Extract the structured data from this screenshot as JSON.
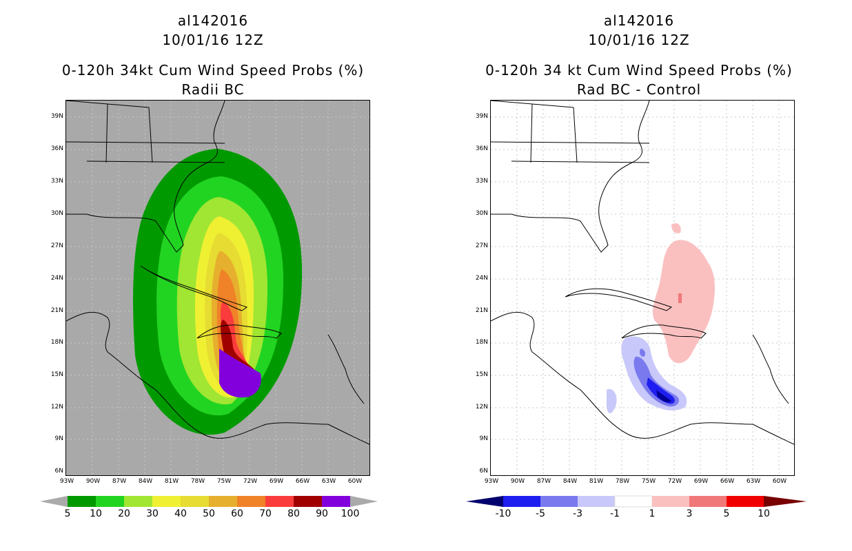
{
  "left": {
    "title_line1": "al142016",
    "title_line2": "10/01/16 12Z",
    "title_line3": "0-120h 34kt Cum Wind Speed Probs (%)",
    "title_line4": "Radii BC",
    "colorbar": {
      "labels": [
        "5",
        "10",
        "20",
        "30",
        "40",
        "50",
        "60",
        "70",
        "80",
        "90",
        "100"
      ],
      "colors": [
        "#009a00",
        "#22d422",
        "#a0e632",
        "#f0f032",
        "#e6dc32",
        "#e6af2d",
        "#f08228",
        "#fa3c3c",
        "#a00000",
        "#8200dc"
      ],
      "extend_color": "#aaaaaa"
    }
  },
  "right": {
    "title_line1": "al142016",
    "title_line2": "10/01/16 12Z",
    "title_line3": "0-120h 34 kt Cum Wind Speed Probs (%)",
    "title_line4": "Rad BC - Control",
    "colorbar": {
      "labels": [
        "-10",
        "-5",
        "-3",
        "-1",
        "1",
        "3",
        "5",
        "10"
      ],
      "colors": [
        "#000096",
        "#1e1ef0",
        "#7a7aee",
        "#c8c8fa",
        "#ffffff",
        "#fac0c0",
        "#f07878",
        "#f00000"
      ],
      "extend_low": "#00006e",
      "extend_high": "#780000"
    }
  },
  "map_labels": {
    "latitudes": [
      "39N",
      "36N",
      "33N",
      "30N",
      "27N",
      "24N",
      "21N",
      "18N",
      "15N",
      "12N",
      "9N",
      "6N"
    ],
    "longitudes": [
      "93W",
      "90W",
      "87W",
      "84W",
      "81W",
      "78W",
      "75W",
      "72W",
      "69W",
      "66W",
      "63W",
      "60W"
    ]
  },
  "colors": {
    "land_bg_left": "#a9a9a9",
    "land_bg_right": "#ffffff",
    "grid": "#c8c8c8"
  }
}
